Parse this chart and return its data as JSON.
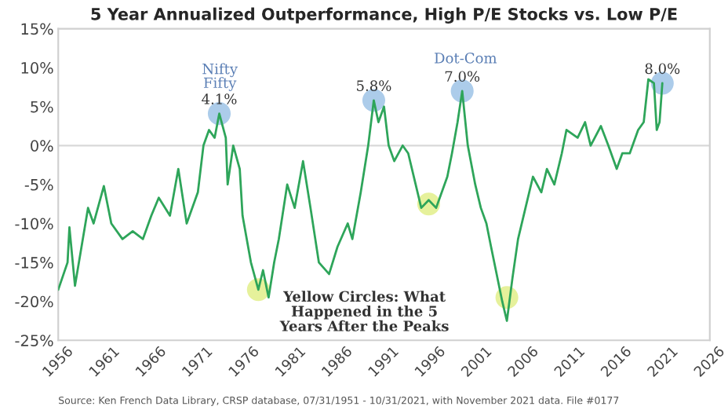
{
  "chart_data": {
    "type": "line",
    "title": "5 Year Annualized Outperformance, High P/E Stocks vs. Low P/E",
    "xlim": [
      1956,
      2026
    ],
    "xticks": [
      1956,
      1961,
      1966,
      1971,
      1976,
      1981,
      1986,
      1991,
      1996,
      2001,
      2006,
      2011,
      2016,
      2021,
      2026
    ],
    "ylim": [
      -25,
      15
    ],
    "yticks": [
      {
        "value": -25,
        "label": "-25%"
      },
      {
        "value": -20,
        "label": "-20%"
      },
      {
        "value": -15,
        "label": "-15%"
      },
      {
        "value": -10,
        "label": "-10%"
      },
      {
        "value": -5,
        "label": "-5%"
      },
      {
        "value": 0,
        "label": "0%"
      },
      {
        "value": 5,
        "label": "5%"
      },
      {
        "value": 10,
        "label": "10%"
      },
      {
        "value": 15,
        "label": "15%"
      }
    ],
    "grid": false,
    "legend": false,
    "ref_lines": [
      {
        "axis": "y",
        "value": 0,
        "color": "#d9d9d9"
      }
    ],
    "series": [
      {
        "color": "#2ea55a",
        "marker": "none",
        "x": [
          1956.0,
          1957.0,
          1957.2,
          1957.8,
          1959.2,
          1959.8,
          1960.9,
          1961.7,
          1962.9,
          1964.0,
          1965.1,
          1966.0,
          1966.8,
          1968.0,
          1968.9,
          1969.8,
          1971.0,
          1971.6,
          1972.2,
          1972.8,
          1973.3,
          1974.0,
          1974.2,
          1974.8,
          1975.5,
          1975.8,
          1976.7,
          1977.5,
          1978.0,
          1978.6,
          1979.2,
          1979.7,
          1980.6,
          1981.4,
          1982.3,
          1983.1,
          1984.0,
          1985.1,
          1986.0,
          1987.1,
          1987.6,
          1988.5,
          1989.3,
          1989.9,
          1990.4,
          1991.0,
          1991.5,
          1992.1,
          1993.0,
          1993.6,
          1994.4,
          1995.0,
          1995.8,
          1996.6,
          1997.8,
          1998.3,
          1998.9,
          1999.4,
          2000.0,
          2000.8,
          2001.4,
          2002.0,
          2002.5,
          2003.7,
          2004.2,
          2004.8,
          2005.4,
          2006.2,
          2007.0,
          2007.9,
          2008.5,
          2009.3,
          2010.1,
          2010.6,
          2011.8,
          2012.6,
          2013.2,
          2014.3,
          2015.1,
          2016.0,
          2016.6,
          2017.4,
          2018.3,
          2018.9,
          2019.4,
          2020.0,
          2020.3,
          2020.6,
          2020.9
        ],
        "values": [
          -18.5,
          -15,
          -10.5,
          -18,
          -8,
          -10,
          -5.2,
          -10,
          -12,
          -11,
          -12,
          -9,
          -6.7,
          -9,
          -3,
          -10,
          -6,
          0,
          2,
          1,
          4.1,
          1,
          -5,
          0,
          -3,
          -9,
          -15,
          -18.5,
          -16,
          -19.5,
          -15,
          -12,
          -5,
          -8,
          -2,
          -8,
          -15,
          -16.5,
          -13,
          -10,
          -12,
          -6,
          0,
          5.8,
          3,
          5,
          0,
          -2,
          0,
          -1,
          -5,
          -8,
          -7,
          -8,
          -4,
          -1,
          3,
          7.0,
          0,
          -5,
          -8,
          -10,
          -13,
          -20,
          -22.5,
          -17,
          -12,
          -8,
          -4,
          -6,
          -3,
          -5,
          -1,
          2,
          1,
          3,
          0,
          2.5,
          0,
          -3,
          -1,
          -1,
          2,
          3,
          8.5,
          8,
          2,
          3,
          8.0
        ]
      },
      {
        "type": "scatter",
        "color": "#9dc3e6",
        "marker": "circle",
        "x": [
          1973.3,
          1989.9,
          1999.4,
          2020.9
        ],
        "values": [
          4.1,
          5.8,
          7.0,
          8.0
        ]
      },
      {
        "type": "scatter",
        "color": "#e2ef8a",
        "marker": "circle",
        "x": [
          1977.5,
          1995.8,
          2004.2
        ],
        "values": [
          -18.5,
          -7.5,
          -19.5
        ]
      }
    ],
    "annotations": [
      "Nifty\nFifty",
      {
        "text": "4.1%",
        "x": 1973.3,
        "y": 4.1
      },
      {
        "text": "5.8%",
        "x": 1989.9,
        "y": 5.8
      },
      "Dot-Com",
      {
        "text": "7.0%",
        "x": 1999.4,
        "y": 7.0
      },
      {
        "text": "8.0%",
        "x": 2020.9,
        "y": 8.0
      },
      "Yellow Circles: What\nHappened in the 5\nYears After the Peaks",
      "Source: Ken French Data Library, CRSP database, 07/31/1951 - 10/31/2021, with November 2021 data. File #0177"
    ]
  }
}
